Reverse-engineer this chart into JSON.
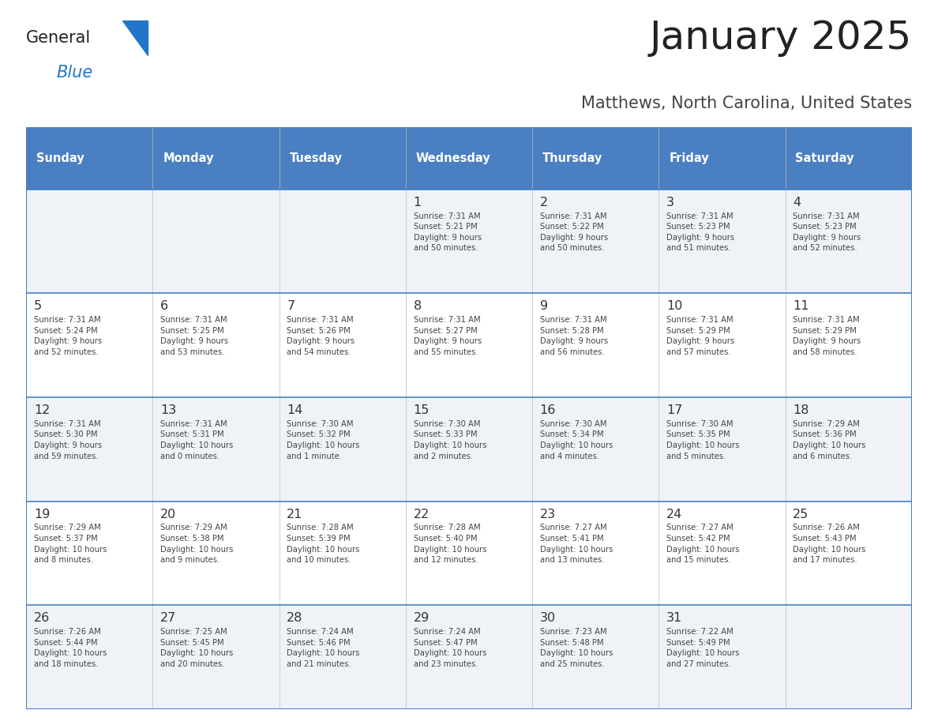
{
  "title": "January 2025",
  "subtitle": "Matthews, North Carolina, United States",
  "header_color": "#4a7fc1",
  "header_text_color": "#ffffff",
  "header_days": [
    "Sunday",
    "Monday",
    "Tuesday",
    "Wednesday",
    "Thursday",
    "Friday",
    "Saturday"
  ],
  "row_bg_light": "#eff3f8",
  "row_bg_white": "#ffffff",
  "divider_color": "#4a7fc1",
  "day_number_color": "#333333",
  "cell_text_color": "#444444",
  "title_color": "#222222",
  "subtitle_color": "#444444",
  "logo_general_color": "#222222",
  "logo_blue_color": "#2176c7",
  "logo_triangle_color": "#2176c7",
  "weeks": [
    [
      {
        "day": "",
        "info": ""
      },
      {
        "day": "",
        "info": ""
      },
      {
        "day": "",
        "info": ""
      },
      {
        "day": "1",
        "info": "Sunrise: 7:31 AM\nSunset: 5:21 PM\nDaylight: 9 hours\nand 50 minutes."
      },
      {
        "day": "2",
        "info": "Sunrise: 7:31 AM\nSunset: 5:22 PM\nDaylight: 9 hours\nand 50 minutes."
      },
      {
        "day": "3",
        "info": "Sunrise: 7:31 AM\nSunset: 5:23 PM\nDaylight: 9 hours\nand 51 minutes."
      },
      {
        "day": "4",
        "info": "Sunrise: 7:31 AM\nSunset: 5:23 PM\nDaylight: 9 hours\nand 52 minutes."
      }
    ],
    [
      {
        "day": "5",
        "info": "Sunrise: 7:31 AM\nSunset: 5:24 PM\nDaylight: 9 hours\nand 52 minutes."
      },
      {
        "day": "6",
        "info": "Sunrise: 7:31 AM\nSunset: 5:25 PM\nDaylight: 9 hours\nand 53 minutes."
      },
      {
        "day": "7",
        "info": "Sunrise: 7:31 AM\nSunset: 5:26 PM\nDaylight: 9 hours\nand 54 minutes."
      },
      {
        "day": "8",
        "info": "Sunrise: 7:31 AM\nSunset: 5:27 PM\nDaylight: 9 hours\nand 55 minutes."
      },
      {
        "day": "9",
        "info": "Sunrise: 7:31 AM\nSunset: 5:28 PM\nDaylight: 9 hours\nand 56 minutes."
      },
      {
        "day": "10",
        "info": "Sunrise: 7:31 AM\nSunset: 5:29 PM\nDaylight: 9 hours\nand 57 minutes."
      },
      {
        "day": "11",
        "info": "Sunrise: 7:31 AM\nSunset: 5:29 PM\nDaylight: 9 hours\nand 58 minutes."
      }
    ],
    [
      {
        "day": "12",
        "info": "Sunrise: 7:31 AM\nSunset: 5:30 PM\nDaylight: 9 hours\nand 59 minutes."
      },
      {
        "day": "13",
        "info": "Sunrise: 7:31 AM\nSunset: 5:31 PM\nDaylight: 10 hours\nand 0 minutes."
      },
      {
        "day": "14",
        "info": "Sunrise: 7:30 AM\nSunset: 5:32 PM\nDaylight: 10 hours\nand 1 minute."
      },
      {
        "day": "15",
        "info": "Sunrise: 7:30 AM\nSunset: 5:33 PM\nDaylight: 10 hours\nand 2 minutes."
      },
      {
        "day": "16",
        "info": "Sunrise: 7:30 AM\nSunset: 5:34 PM\nDaylight: 10 hours\nand 4 minutes."
      },
      {
        "day": "17",
        "info": "Sunrise: 7:30 AM\nSunset: 5:35 PM\nDaylight: 10 hours\nand 5 minutes."
      },
      {
        "day": "18",
        "info": "Sunrise: 7:29 AM\nSunset: 5:36 PM\nDaylight: 10 hours\nand 6 minutes."
      }
    ],
    [
      {
        "day": "19",
        "info": "Sunrise: 7:29 AM\nSunset: 5:37 PM\nDaylight: 10 hours\nand 8 minutes."
      },
      {
        "day": "20",
        "info": "Sunrise: 7:29 AM\nSunset: 5:38 PM\nDaylight: 10 hours\nand 9 minutes."
      },
      {
        "day": "21",
        "info": "Sunrise: 7:28 AM\nSunset: 5:39 PM\nDaylight: 10 hours\nand 10 minutes."
      },
      {
        "day": "22",
        "info": "Sunrise: 7:28 AM\nSunset: 5:40 PM\nDaylight: 10 hours\nand 12 minutes."
      },
      {
        "day": "23",
        "info": "Sunrise: 7:27 AM\nSunset: 5:41 PM\nDaylight: 10 hours\nand 13 minutes."
      },
      {
        "day": "24",
        "info": "Sunrise: 7:27 AM\nSunset: 5:42 PM\nDaylight: 10 hours\nand 15 minutes."
      },
      {
        "day": "25",
        "info": "Sunrise: 7:26 AM\nSunset: 5:43 PM\nDaylight: 10 hours\nand 17 minutes."
      }
    ],
    [
      {
        "day": "26",
        "info": "Sunrise: 7:26 AM\nSunset: 5:44 PM\nDaylight: 10 hours\nand 18 minutes."
      },
      {
        "day": "27",
        "info": "Sunrise: 7:25 AM\nSunset: 5:45 PM\nDaylight: 10 hours\nand 20 minutes."
      },
      {
        "day": "28",
        "info": "Sunrise: 7:24 AM\nSunset: 5:46 PM\nDaylight: 10 hours\nand 21 minutes."
      },
      {
        "day": "29",
        "info": "Sunrise: 7:24 AM\nSunset: 5:47 PM\nDaylight: 10 hours\nand 23 minutes."
      },
      {
        "day": "30",
        "info": "Sunrise: 7:23 AM\nSunset: 5:48 PM\nDaylight: 10 hours\nand 25 minutes."
      },
      {
        "day": "31",
        "info": "Sunrise: 7:22 AM\nSunset: 5:49 PM\nDaylight: 10 hours\nand 27 minutes."
      },
      {
        "day": "",
        "info": ""
      }
    ]
  ]
}
